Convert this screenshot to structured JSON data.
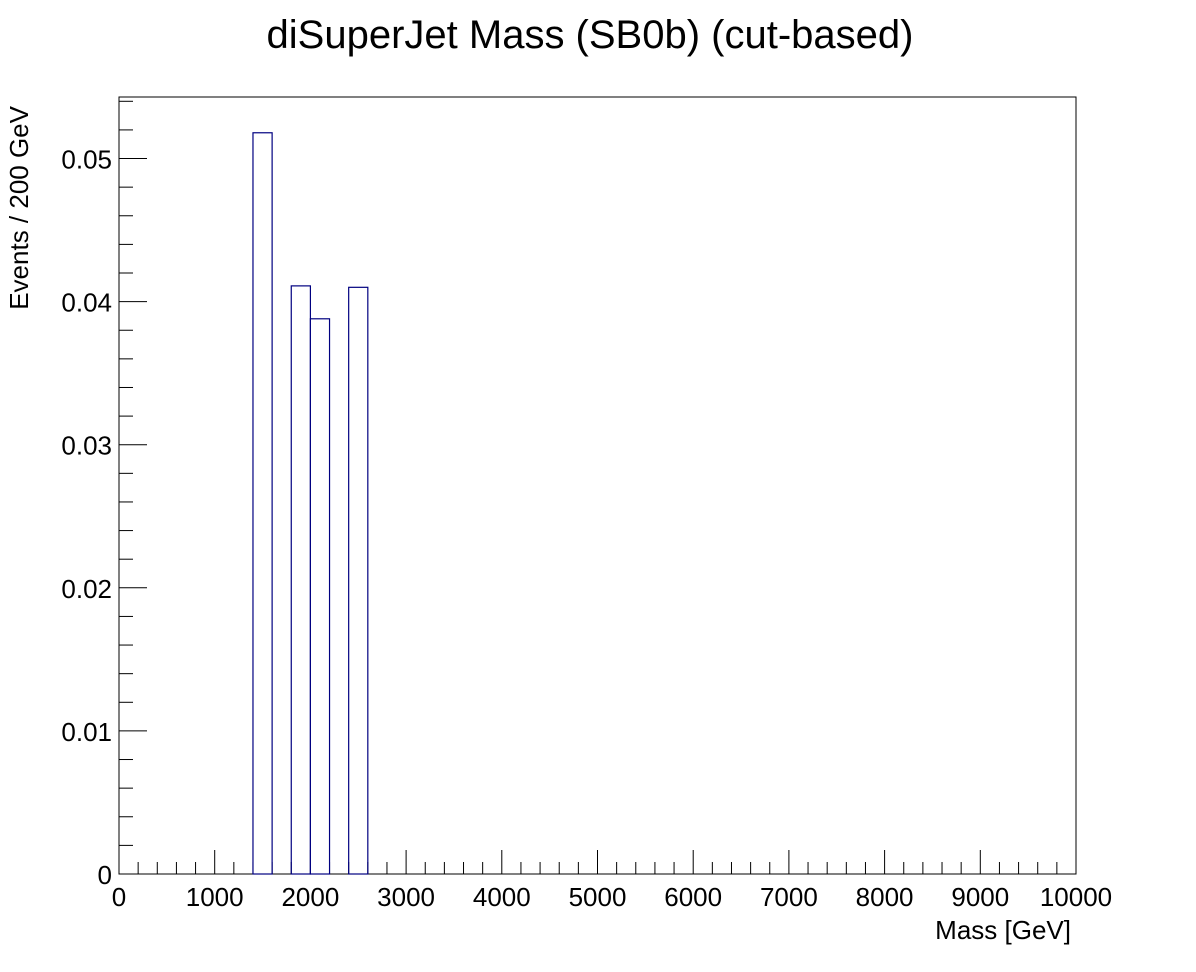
{
  "chart_data": {
    "type": "bar",
    "title": "diSuperJet Mass (SB0b) (cut-based)",
    "xlabel": "Mass [GeV]",
    "ylabel": "Events / 200 GeV",
    "xlim": [
      0,
      10000
    ],
    "ylim": [
      0,
      0.0543
    ],
    "bin_width": 200,
    "x_ticks": [
      0,
      1000,
      2000,
      3000,
      4000,
      5000,
      6000,
      7000,
      8000,
      9000,
      10000
    ],
    "x_tick_labels": [
      "0",
      "1000",
      "2000",
      "3000",
      "4000",
      "5000",
      "6000",
      "7000",
      "8000",
      "9000",
      "10000"
    ],
    "y_ticks": [
      0,
      0.01,
      0.02,
      0.03,
      0.04,
      0.05
    ],
    "y_tick_labels": [
      "0",
      "0.01",
      "0.02",
      "0.03",
      "0.04",
      "0.05"
    ],
    "series": [
      {
        "color": "#000080",
        "bins": [
          {
            "x0": 1400,
            "x1": 1600,
            "value": 0.0518
          },
          {
            "x0": 1600,
            "x1": 1800,
            "value": 0
          },
          {
            "x0": 1800,
            "x1": 2000,
            "value": 0.0411
          },
          {
            "x0": 2000,
            "x1": 2200,
            "value": 0.0388
          },
          {
            "x0": 2200,
            "x1": 2400,
            "value": 0
          },
          {
            "x0": 2400,
            "x1": 2600,
            "value": 0.041
          }
        ]
      }
    ],
    "grid": false,
    "legend": "none"
  }
}
